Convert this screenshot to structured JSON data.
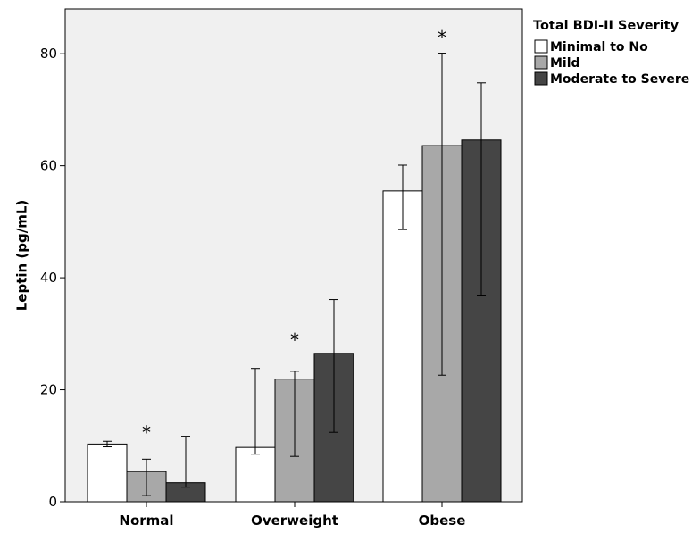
{
  "chart_data": {
    "type": "bar",
    "title": "",
    "xlabel": "",
    "ylabel": "Leptin (pg/mL)",
    "ylim": [
      0,
      88
    ],
    "yticks": [
      0,
      20,
      40,
      60,
      80
    ],
    "grid": false,
    "background": "#f0f0f0",
    "legend_position": "right",
    "legend_title": "Total BDI-II Severity",
    "categories": [
      "Normal",
      "Overweight",
      "Obese"
    ],
    "series": [
      {
        "name": "Minimal to No",
        "color": "#ffffff",
        "values": [
          10.3,
          9.7,
          55.5
        ],
        "error_low": [
          9.8,
          8.5,
          48.6
        ],
        "error_high": [
          10.8,
          23.8,
          60.1
        ]
      },
      {
        "name": "Mild",
        "color": "#a8a8a8",
        "values": [
          5.4,
          21.9,
          63.6
        ],
        "error_low": [
          1.1,
          8.1,
          22.6
        ],
        "error_high": [
          7.6,
          23.3,
          80.1
        ]
      },
      {
        "name": "Moderate to Severe",
        "color": "#454545",
        "values": [
          3.4,
          26.5,
          64.6
        ],
        "error_low": [
          2.6,
          12.4,
          36.9
        ],
        "error_high": [
          11.7,
          36.1,
          74.8
        ]
      }
    ],
    "annotations": [
      {
        "text": "*",
        "category": "Normal",
        "series": "Mild",
        "y": 13
      },
      {
        "text": "*",
        "category": "Overweight",
        "series": "Mild",
        "y": 29.5
      },
      {
        "text": "*",
        "category": "Obese",
        "series": "Mild",
        "y": 83.5
      }
    ]
  }
}
